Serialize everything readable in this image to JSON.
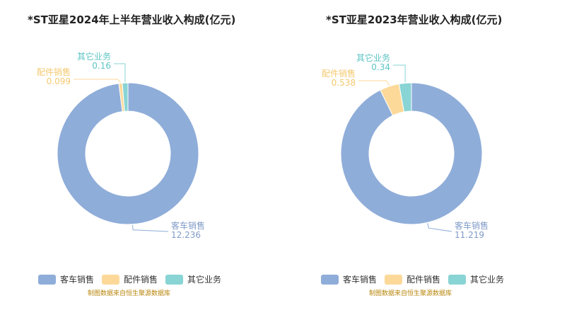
{
  "chart_data": [
    {
      "type": "pie",
      "title": "*ST亚星2024年上半年营业收入构成(亿元)",
      "categories": [
        "客车销售",
        "配件销售",
        "其它业务"
      ],
      "values": [
        12.236,
        0.099,
        0.16
      ],
      "value_labels": [
        "12.236",
        "0.099",
        "0.16"
      ],
      "colors": [
        "#8fadd9",
        "#fdd999",
        "#89d4d4"
      ],
      "legend": "bottom",
      "source": "制图数据来自恒生聚源数据库"
    },
    {
      "type": "pie",
      "title": "*ST亚星2023年营业收入构成(亿元)",
      "categories": [
        "客车销售",
        "配件销售",
        "其它业务"
      ],
      "values": [
        11.219,
        0.538,
        0.34
      ],
      "value_labels": [
        "11.219",
        "0.538",
        "0.34"
      ],
      "colors": [
        "#8fadd9",
        "#fdd999",
        "#89d4d4"
      ],
      "legend": "bottom",
      "source": "制图数据来自恒生聚源数据库"
    }
  ]
}
